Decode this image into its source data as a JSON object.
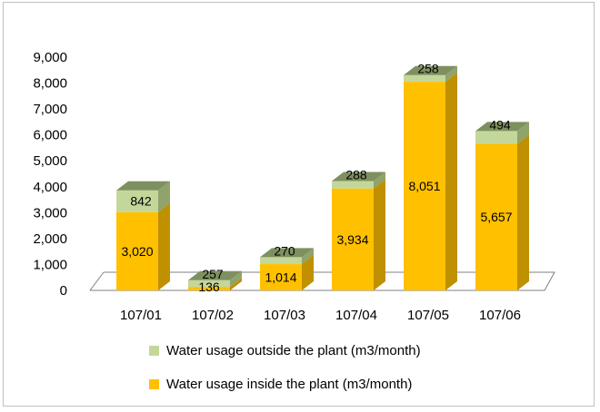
{
  "chart_data": {
    "type": "bar",
    "stacked": true,
    "style": "3d",
    "categories": [
      "107/01",
      "107/02",
      "107/03",
      "107/04",
      "107/05",
      "107/06"
    ],
    "series": [
      {
        "name": "Water usage inside the plant (m3/month)",
        "values": [
          3020,
          136,
          1014,
          3934,
          8051,
          5657
        ],
        "color": "#FFC000"
      },
      {
        "name": "Water usage outside the plant (m3/month)",
        "values": [
          842,
          257,
          270,
          288,
          258,
          494
        ],
        "color": "#C4D79B"
      }
    ],
    "data_labels": {
      "inside": [
        "3,020",
        "136",
        "1,014",
        "3,934",
        "8,051",
        "5,657"
      ],
      "outside": [
        "842",
        "257",
        "270",
        "288",
        "258",
        "494"
      ]
    },
    "ylim": [
      0,
      9000
    ],
    "yticks": [
      0,
      1000,
      2000,
      3000,
      4000,
      5000,
      6000,
      7000,
      8000,
      9000
    ],
    "ytick_labels": [
      "0",
      "1,000",
      "2,000",
      "3,000",
      "4,000",
      "5,000",
      "6,000",
      "7,000",
      "8,000",
      "9,000"
    ],
    "legend_position": "bottom",
    "grid": false
  },
  "legend": {
    "outside_label": "Water usage outside the plant (m3/month)",
    "inside_label": "Water usage inside the plant (m3/month)"
  }
}
